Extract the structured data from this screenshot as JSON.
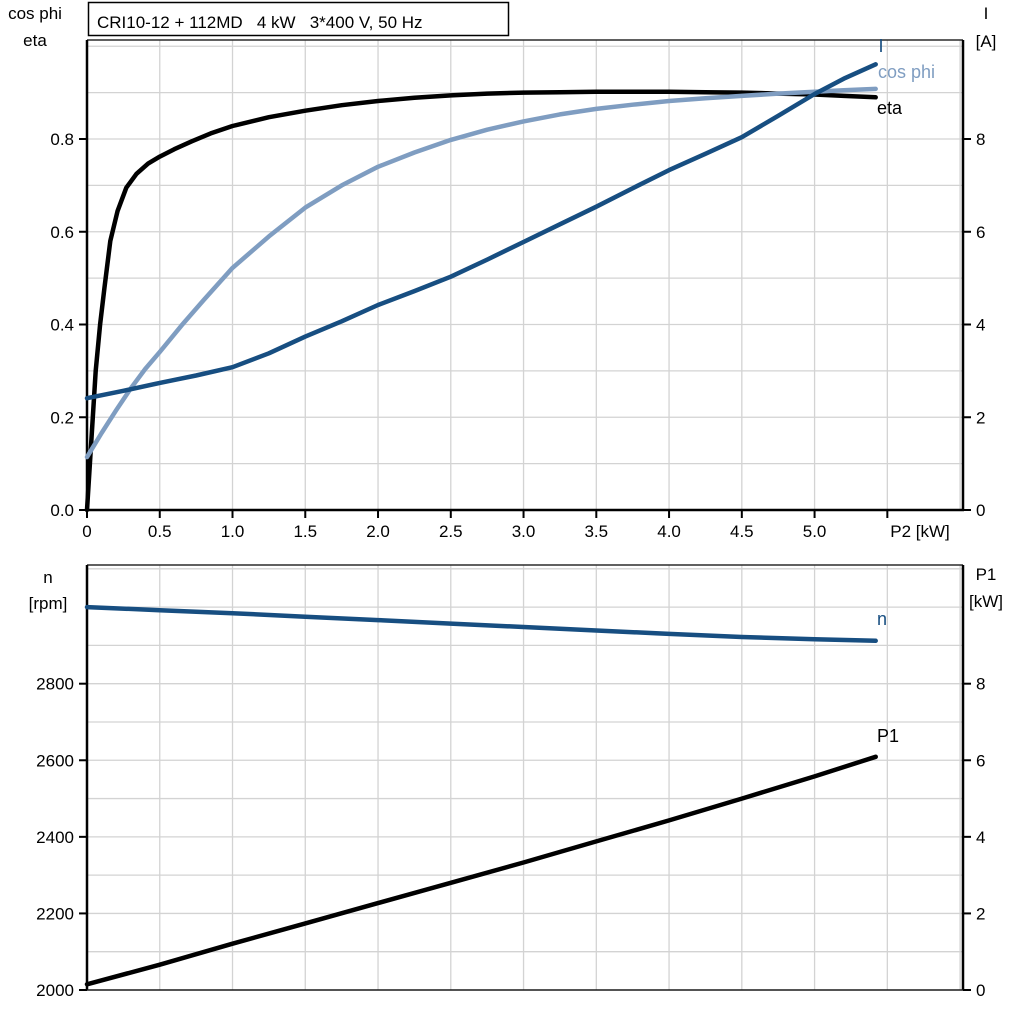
{
  "title_box": "CRI10-12 + 112MD   4 kW   3*400 V, 50 Hz",
  "colors": {
    "curve_dark_blue": "#174e81",
    "curve_light_blue": "#7f9dc1",
    "curve_black": "#000000",
    "grid": "#d3d3d3",
    "frame": "#2b2b2b",
    "axis": "#000000"
  },
  "chart_data": [
    {
      "type": "line",
      "title": "CRI10-12 + 112MD   4 kW   3*400 V, 50 Hz",
      "xlabel": "P2 [kW]",
      "left_axis_label": [
        "cos phi",
        "eta"
      ],
      "right_axis_label": [
        "I",
        "[A]"
      ],
      "xlim": [
        0,
        6.02
      ],
      "ylim_left": [
        0,
        1.0135
      ],
      "ylim_right": [
        0,
        10.135
      ],
      "x_tick_values": [
        0,
        0.5,
        1.0,
        1.5,
        2.0,
        2.5,
        3.0,
        3.5,
        4.0,
        4.5,
        5.0
      ],
      "x_tick_labels": [
        "0",
        "0.5",
        "1.0",
        "1.5",
        "2.0",
        "2.5",
        "3.0",
        "3.5",
        "4.0",
        "4.5",
        "5.0"
      ],
      "x_extra_ticks": [
        5.5
      ],
      "left_tick_values": [
        0,
        0.2,
        0.4,
        0.6,
        0.8
      ],
      "left_tick_labels": [
        "0.0",
        "0.2",
        "0.4",
        "0.6",
        "0.8"
      ],
      "right_tick_values": [
        0,
        2,
        4,
        6,
        8
      ],
      "right_tick_labels": [
        "0",
        "2",
        "4",
        "6",
        "8"
      ],
      "grid_x_step": 0.5,
      "grid_y_step": 0.1,
      "series": [
        {
          "name": "eta",
          "label": "eta",
          "axis": "left",
          "color_key": "curve_black",
          "points": [
            [
              0,
              0
            ],
            [
              0.02,
              0.1
            ],
            [
              0.04,
              0.2
            ],
            [
              0.06,
              0.3
            ],
            [
              0.09,
              0.4
            ],
            [
              0.12,
              0.48
            ],
            [
              0.16,
              0.58
            ],
            [
              0.21,
              0.645
            ],
            [
              0.27,
              0.695
            ],
            [
              0.34,
              0.725
            ],
            [
              0.42,
              0.747
            ],
            [
              0.5,
              0.762
            ],
            [
              0.6,
              0.778
            ],
            [
              0.72,
              0.795
            ],
            [
              0.85,
              0.812
            ],
            [
              1.0,
              0.828
            ],
            [
              1.25,
              0.847
            ],
            [
              1.5,
              0.861
            ],
            [
              1.75,
              0.873
            ],
            [
              2.0,
              0.882
            ],
            [
              2.25,
              0.889
            ],
            [
              2.5,
              0.894
            ],
            [
              2.75,
              0.898
            ],
            [
              3.0,
              0.9
            ],
            [
              3.25,
              0.901
            ],
            [
              3.5,
              0.902
            ],
            [
              3.75,
              0.902
            ],
            [
              4.0,
              0.902
            ],
            [
              4.25,
              0.901
            ],
            [
              4.5,
              0.9
            ],
            [
              4.75,
              0.898
            ],
            [
              5.0,
              0.896
            ],
            [
              5.2,
              0.893
            ],
            [
              5.42,
              0.89
            ]
          ]
        },
        {
          "name": "cos phi",
          "label": "cos phi",
          "axis": "left",
          "color_key": "curve_light_blue",
          "points": [
            [
              0,
              0.114
            ],
            [
              0.1,
              0.166
            ],
            [
              0.2,
              0.215
            ],
            [
              0.3,
              0.262
            ],
            [
              0.4,
              0.304
            ],
            [
              0.5,
              0.341
            ],
            [
              0.65,
              0.398
            ],
            [
              0.8,
              0.452
            ],
            [
              1.0,
              0.522
            ],
            [
              1.25,
              0.59
            ],
            [
              1.5,
              0.652
            ],
            [
              1.75,
              0.7
            ],
            [
              2.0,
              0.74
            ],
            [
              2.25,
              0.771
            ],
            [
              2.5,
              0.798
            ],
            [
              2.75,
              0.82
            ],
            [
              3.0,
              0.838
            ],
            [
              3.25,
              0.853
            ],
            [
              3.5,
              0.865
            ],
            [
              3.75,
              0.874
            ],
            [
              4.0,
              0.882
            ],
            [
              4.25,
              0.888
            ],
            [
              4.5,
              0.893
            ],
            [
              4.75,
              0.898
            ],
            [
              5.0,
              0.902
            ],
            [
              5.2,
              0.905
            ],
            [
              5.42,
              0.908
            ]
          ]
        },
        {
          "name": "I",
          "label": "I",
          "axis": "right",
          "color_key": "curve_dark_blue",
          "points": [
            [
              0,
              2.41
            ],
            [
              0.25,
              2.57
            ],
            [
              0.5,
              2.74
            ],
            [
              0.75,
              2.9
            ],
            [
              1.0,
              3.08
            ],
            [
              1.25,
              3.38
            ],
            [
              1.5,
              3.74
            ],
            [
              1.75,
              4.07
            ],
            [
              2.0,
              4.42
            ],
            [
              2.25,
              4.72
            ],
            [
              2.5,
              5.03
            ],
            [
              2.75,
              5.4
            ],
            [
              3.0,
              5.78
            ],
            [
              3.25,
              6.16
            ],
            [
              3.5,
              6.54
            ],
            [
              3.75,
              6.94
            ],
            [
              4.0,
              7.33
            ],
            [
              4.25,
              7.68
            ],
            [
              4.5,
              8.04
            ],
            [
              4.75,
              8.5
            ],
            [
              5.0,
              8.97
            ],
            [
              5.2,
              9.3
            ],
            [
              5.42,
              9.61
            ]
          ]
        }
      ]
    },
    {
      "type": "line",
      "title": "",
      "xlabel": "",
      "left_axis_label": [
        "n",
        "[rpm]"
      ],
      "right_axis_label": [
        "P1",
        "[kW]"
      ],
      "xlim": [
        0,
        6.02
      ],
      "ylim_left": [
        2000,
        3110
      ],
      "ylim_right": [
        0,
        11.1
      ],
      "x_tick_values": [],
      "x_tick_labels": [],
      "x_extra_ticks": [],
      "left_tick_values": [
        2000,
        2200,
        2400,
        2600,
        2800
      ],
      "left_tick_labels": [
        "2000",
        "2200",
        "2400",
        "2600",
        "2800"
      ],
      "right_tick_values": [
        0,
        2,
        4,
        6,
        8
      ],
      "right_tick_labels": [
        "0",
        "2",
        "4",
        "6",
        "8"
      ],
      "grid_x_step": 0.5,
      "grid_y_step": 100,
      "series": [
        {
          "name": "n",
          "label": "n",
          "axis": "left",
          "color_key": "curve_dark_blue",
          "points": [
            [
              0,
              3000
            ],
            [
              0.5,
              2992
            ],
            [
              1.0,
              2984
            ],
            [
              1.5,
              2975
            ],
            [
              2.0,
              2966
            ],
            [
              2.5,
              2957
            ],
            [
              3.0,
              2948
            ],
            [
              3.5,
              2939
            ],
            [
              4.0,
              2930
            ],
            [
              4.5,
              2922
            ],
            [
              5.0,
              2916
            ],
            [
              5.42,
              2912
            ]
          ]
        },
        {
          "name": "P1",
          "label": "P1",
          "axis": "right",
          "color_key": "curve_black",
          "points": [
            [
              0,
              0.15
            ],
            [
              0.5,
              0.66
            ],
            [
              1.0,
              1.21
            ],
            [
              1.5,
              1.74
            ],
            [
              2.0,
              2.27
            ],
            [
              2.5,
              2.8
            ],
            [
              3.0,
              3.33
            ],
            [
              3.5,
              3.88
            ],
            [
              4.0,
              4.43
            ],
            [
              4.5,
              5.0
            ],
            [
              5.0,
              5.58
            ],
            [
              5.42,
              6.09
            ]
          ]
        }
      ]
    }
  ]
}
